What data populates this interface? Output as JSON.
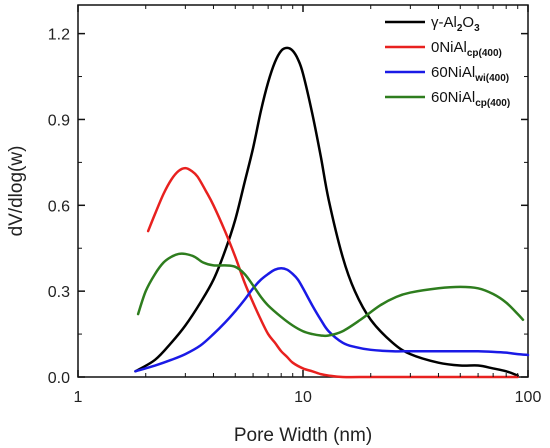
{
  "chart_data": {
    "type": "line",
    "xlabel": "Pore Width (nm)",
    "ylabel": "dV/dlog(w)",
    "xscale": "log",
    "xlim": [
      1,
      100
    ],
    "ylim": [
      0,
      1.3
    ],
    "xticks": [
      1,
      10,
      100
    ],
    "xtick_labels": [
      "1",
      "10",
      "100"
    ],
    "yticks": [
      0.0,
      0.3,
      0.6,
      0.9,
      1.2
    ],
    "ytick_labels": [
      "0.0",
      "0.3",
      "0.6",
      "0.9",
      "1.2"
    ],
    "grid": false,
    "legend_position": "top-right",
    "series": [
      {
        "name": "γ-Al2O3",
        "legend_parts": [
          {
            "t": "γ-Al",
            "sub": false
          },
          {
            "t": "2",
            "sub": true
          },
          {
            "t": "O",
            "sub": false
          },
          {
            "t": "3",
            "sub": true
          }
        ],
        "color": "#000000",
        "x": [
          1.8,
          2.2,
          2.6,
          3.0,
          3.5,
          4.0,
          4.5,
          5.0,
          5.5,
          6.0,
          6.5,
          7.0,
          7.5,
          8.0,
          8.5,
          9.0,
          9.5,
          10.0,
          11.0,
          12.0,
          13.0,
          15.0,
          17.0,
          20.0,
          25.0,
          30.0,
          40.0,
          50.0,
          60.0,
          70.0,
          80.0,
          90.0
        ],
        "y": [
          0.02,
          0.06,
          0.12,
          0.18,
          0.26,
          0.34,
          0.44,
          0.55,
          0.68,
          0.8,
          0.93,
          1.03,
          1.1,
          1.14,
          1.15,
          1.14,
          1.11,
          1.06,
          0.92,
          0.77,
          0.62,
          0.42,
          0.3,
          0.2,
          0.12,
          0.08,
          0.05,
          0.04,
          0.04,
          0.03,
          0.02,
          0.005
        ]
      },
      {
        "name": "0NiAlcp(400)",
        "legend_parts": [
          {
            "t": "0NiAl",
            "sub": false
          },
          {
            "t": "cp(400)",
            "sub": true
          }
        ],
        "color": "#e8211f",
        "x": [
          2.05,
          2.2,
          2.4,
          2.6,
          2.8,
          3.0,
          3.2,
          3.4,
          3.7,
          4.0,
          4.5,
          5.0,
          5.5,
          6.0,
          6.5,
          7.0,
          7.5,
          8.0,
          8.5,
          9.0,
          10.0,
          11.0,
          12.0,
          13.0,
          15.0,
          20.0,
          30.0,
          50.0,
          90.0
        ],
        "y": [
          0.51,
          0.57,
          0.64,
          0.69,
          0.72,
          0.73,
          0.72,
          0.7,
          0.65,
          0.6,
          0.51,
          0.42,
          0.33,
          0.26,
          0.2,
          0.15,
          0.12,
          0.09,
          0.07,
          0.05,
          0.03,
          0.02,
          0.01,
          0.005,
          0.0,
          0.0,
          0.0,
          0.0,
          0.0
        ]
      },
      {
        "name": "60NiAlwi(400)",
        "legend_parts": [
          {
            "t": "60NiAl",
            "sub": false
          },
          {
            "t": "wi(400)",
            "sub": true
          }
        ],
        "color": "#1a1ae6",
        "x": [
          1.8,
          2.2,
          2.6,
          3.0,
          3.5,
          4.0,
          4.5,
          5.0,
          5.5,
          6.0,
          6.5,
          7.0,
          7.5,
          8.0,
          8.5,
          9.0,
          9.5,
          10.0,
          11.0,
          12.0,
          13.0,
          15.0,
          17.0,
          20.0,
          25.0,
          30.0,
          40.0,
          50.0,
          60.0,
          70.0,
          80.0,
          90.0,
          100.0
        ],
        "y": [
          0.02,
          0.04,
          0.06,
          0.08,
          0.11,
          0.15,
          0.19,
          0.23,
          0.27,
          0.31,
          0.34,
          0.36,
          0.375,
          0.38,
          0.375,
          0.36,
          0.34,
          0.31,
          0.25,
          0.2,
          0.16,
          0.12,
          0.105,
          0.095,
          0.09,
          0.09,
          0.09,
          0.09,
          0.09,
          0.088,
          0.085,
          0.08,
          0.077
        ]
      },
      {
        "name": "60NiAlcp(400)",
        "legend_parts": [
          {
            "t": "60NiAl",
            "sub": false
          },
          {
            "t": "cp(400)",
            "sub": true
          }
        ],
        "color": "#2e7d1e",
        "x": [
          1.85,
          2.0,
          2.2,
          2.4,
          2.6,
          2.8,
          3.0,
          3.3,
          3.6,
          4.0,
          4.5,
          5.0,
          5.5,
          6.0,
          6.5,
          7.0,
          8.0,
          9.0,
          10.0,
          11.0,
          12.0,
          13.0,
          15.0,
          18.0,
          22.0,
          26.0,
          30.0,
          40.0,
          50.0,
          60.0,
          70.0,
          80.0,
          90.0,
          95.0
        ],
        "y": [
          0.22,
          0.3,
          0.36,
          0.4,
          0.42,
          0.43,
          0.43,
          0.42,
          0.4,
          0.39,
          0.39,
          0.385,
          0.36,
          0.32,
          0.28,
          0.25,
          0.21,
          0.18,
          0.16,
          0.15,
          0.145,
          0.145,
          0.16,
          0.2,
          0.25,
          0.28,
          0.295,
          0.31,
          0.315,
          0.31,
          0.29,
          0.26,
          0.22,
          0.2
        ]
      }
    ]
  }
}
